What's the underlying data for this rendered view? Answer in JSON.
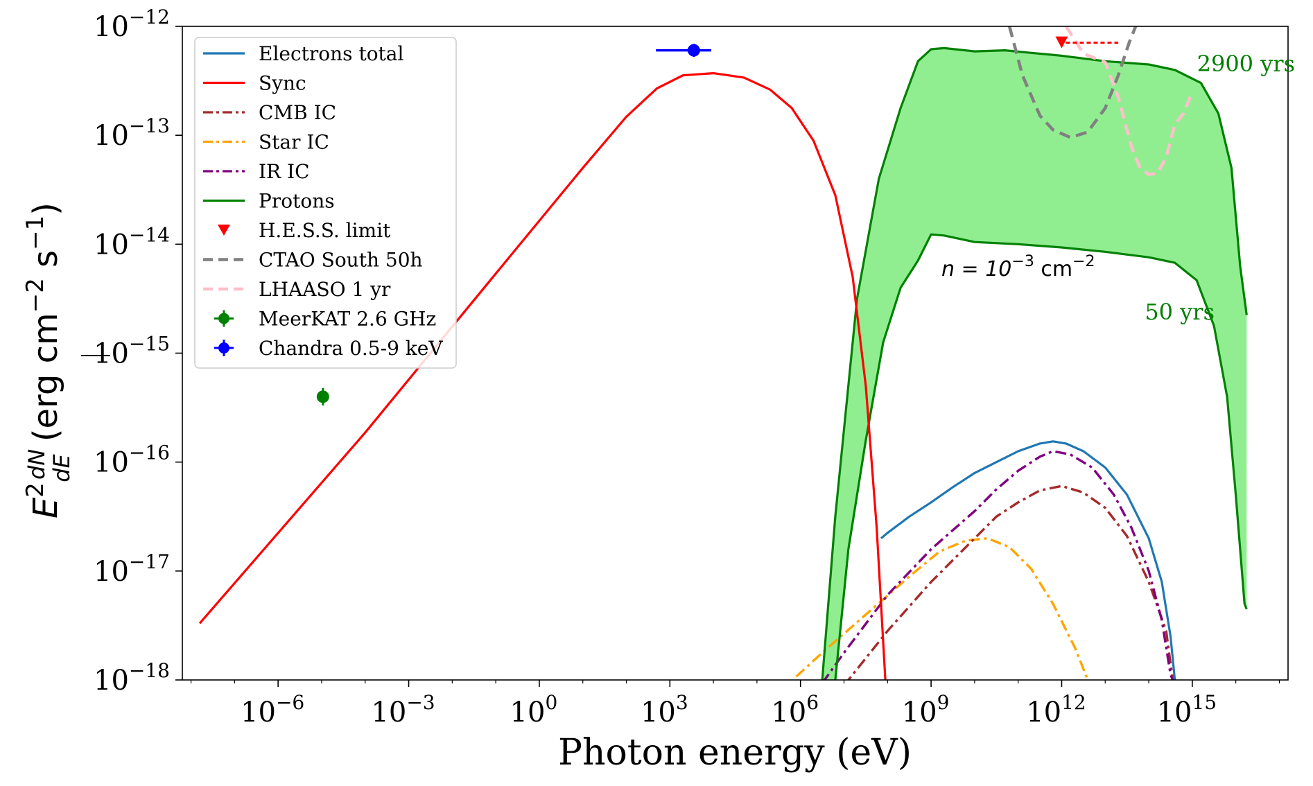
{
  "chart_data": {
    "type": "line",
    "x_scale": "log",
    "y_scale": "log",
    "xlabel": "Photon energy (eV)",
    "ylabel": "E^2 dN/dE (erg cm^-2 s^-1)",
    "ylabel_parts": {
      "E": "E",
      "sup2": "2",
      "num": "dN",
      "den": "dE",
      "unit": "(erg cm",
      "exp1": "−2",
      "s": " s",
      "exp2": "−1",
      "close": ")"
    },
    "xlim_log10": [
      -8.2,
      17.2
    ],
    "ylim_log10": [
      -18,
      -12
    ],
    "x_ticks": [
      {
        "base": "10",
        "exp": "−6",
        "log": -6
      },
      {
        "base": "10",
        "exp": "−3",
        "log": -3
      },
      {
        "base": "10",
        "exp": "0",
        "log": 0
      },
      {
        "base": "10",
        "exp": "3",
        "log": 3
      },
      {
        "base": "10",
        "exp": "6",
        "log": 6
      },
      {
        "base": "10",
        "exp": "9",
        "log": 9
      },
      {
        "base": "10",
        "exp": "12",
        "log": 12
      },
      {
        "base": "10",
        "exp": "15",
        "log": 15
      }
    ],
    "y_ticks": [
      {
        "base": "10",
        "exp": "−12",
        "log": -12
      },
      {
        "base": "10",
        "exp": "−13",
        "log": -13
      },
      {
        "base": "10",
        "exp": "−14",
        "log": -14
      },
      {
        "base": "10",
        "exp": "−15",
        "log": -15
      },
      {
        "base": "10",
        "exp": "−16",
        "log": -16
      },
      {
        "base": "10",
        "exp": "−17",
        "log": -17
      },
      {
        "base": "10",
        "exp": "−18",
        "log": -18
      }
    ],
    "legend_position": "top-left",
    "legend": [
      {
        "label": "Electrons total",
        "color": "#1f77b4",
        "style": "solid"
      },
      {
        "label": "Sync",
        "color": "#ff0000",
        "style": "solid"
      },
      {
        "label": "CMB IC",
        "color": "#a52a2a",
        "style": "dashdot"
      },
      {
        "label": "Star IC",
        "color": "#ffa500",
        "style": "dashdot"
      },
      {
        "label": "IR IC",
        "color": "#800080",
        "style": "dashdot"
      },
      {
        "label": "Protons",
        "color": "#008000",
        "style": "solid"
      },
      {
        "label": "H.E.S.S. limit",
        "color": "#ff0000",
        "style": "triangle"
      },
      {
        "label": "CTAO South 50h",
        "color": "#808080",
        "style": "dashed"
      },
      {
        "label": "LHAASO 1 yr",
        "color": "#ffc0cb",
        "style": "dashed"
      },
      {
        "label": "MeerKAT 2.6 GHz",
        "color": "#008000",
        "style": "errorpoint"
      },
      {
        "label": "Chandra 0.5-9 keV",
        "color": "#0000ff",
        "style": "errorpoint"
      }
    ],
    "annotations": {
      "age_high": "2900 yrs",
      "age_low": "50 yrs",
      "density": {
        "prefix": "n = 10",
        "exp": "−3",
        "suffix": " cm",
        "exp2": "−2"
      }
    },
    "series": {
      "sync": {
        "name": "Sync",
        "color": "#ff0000",
        "points": [
          [
            -7.8,
            -17.48
          ],
          [
            -4,
            -15.73
          ],
          [
            -1,
            -14.27
          ],
          [
            1,
            -13.3
          ],
          [
            2,
            -12.83
          ],
          [
            2.7,
            -12.57
          ],
          [
            3.3,
            -12.45
          ],
          [
            4,
            -12.43
          ],
          [
            4.7,
            -12.47
          ],
          [
            5.3,
            -12.58
          ],
          [
            5.8,
            -12.75
          ],
          [
            6.3,
            -13.05
          ],
          [
            6.8,
            -13.55
          ],
          [
            7.2,
            -14.3
          ],
          [
            7.5,
            -15.3
          ],
          [
            7.75,
            -16.6
          ],
          [
            7.95,
            -18
          ]
        ]
      },
      "electrons_total": {
        "name": "Electrons total",
        "color": "#1f77b4",
        "points": [
          [
            7.85,
            -16.7
          ],
          [
            8,
            -16.65
          ],
          [
            8.5,
            -16.5
          ],
          [
            9,
            -16.37
          ],
          [
            9.5,
            -16.23
          ],
          [
            10,
            -16.1
          ],
          [
            10.5,
            -16
          ],
          [
            11,
            -15.9
          ],
          [
            11.5,
            -15.83
          ],
          [
            11.8,
            -15.81
          ],
          [
            12.1,
            -15.83
          ],
          [
            12.5,
            -15.9
          ],
          [
            13,
            -16.05
          ],
          [
            13.5,
            -16.3
          ],
          [
            14,
            -16.7
          ],
          [
            14.3,
            -17.1
          ],
          [
            14.5,
            -17.6
          ],
          [
            14.6,
            -18
          ]
        ]
      },
      "ir_ic": {
        "name": "IR IC",
        "color": "#800080",
        "points": [
          [
            6.5,
            -18.03
          ],
          [
            7,
            -17.75
          ],
          [
            8,
            -17.22
          ],
          [
            9,
            -16.8
          ],
          [
            10,
            -16.45
          ],
          [
            10.5,
            -16.25
          ],
          [
            11,
            -16.08
          ],
          [
            11.5,
            -15.95
          ],
          [
            11.8,
            -15.9
          ],
          [
            12.2,
            -15.93
          ],
          [
            12.7,
            -16.05
          ],
          [
            13.2,
            -16.3
          ],
          [
            13.6,
            -16.6
          ],
          [
            14,
            -17
          ],
          [
            14.3,
            -17.45
          ],
          [
            14.5,
            -17.95
          ],
          [
            14.55,
            -18
          ]
        ]
      },
      "cmb_ic": {
        "name": "CMB IC",
        "color": "#a52a2a",
        "points": [
          [
            7,
            -18.05
          ],
          [
            8,
            -17.55
          ],
          [
            9,
            -17.1
          ],
          [
            10,
            -16.7
          ],
          [
            10.5,
            -16.5
          ],
          [
            11,
            -16.37
          ],
          [
            11.5,
            -16.26
          ],
          [
            12,
            -16.22
          ],
          [
            12.5,
            -16.28
          ],
          [
            13,
            -16.42
          ],
          [
            13.5,
            -16.68
          ],
          [
            14,
            -17.1
          ],
          [
            14.4,
            -17.55
          ],
          [
            14.55,
            -18
          ]
        ]
      },
      "star_ic": {
        "name": "Star IC",
        "color": "#ffa500",
        "points": [
          [
            5.9,
            -17.97
          ],
          [
            6.5,
            -17.75
          ],
          [
            7.5,
            -17.4
          ],
          [
            8.5,
            -17.05
          ],
          [
            9.2,
            -16.82
          ],
          [
            9.8,
            -16.72
          ],
          [
            10.3,
            -16.7
          ],
          [
            10.8,
            -16.78
          ],
          [
            11.3,
            -16.98
          ],
          [
            11.8,
            -17.3
          ],
          [
            12.3,
            -17.7
          ],
          [
            12.6,
            -18
          ]
        ]
      },
      "protons_upper": {
        "name": "Protons",
        "color": "#008000",
        "points": [
          [
            6.5,
            -18
          ],
          [
            6.8,
            -16.5
          ],
          [
            7.3,
            -14.5
          ],
          [
            7.8,
            -13.4
          ],
          [
            8.3,
            -12.75
          ],
          [
            8.7,
            -12.32
          ],
          [
            9,
            -12.21
          ],
          [
            9.3,
            -12.2
          ],
          [
            10,
            -12.23
          ],
          [
            10.7,
            -12.22
          ],
          [
            11.2,
            -12.24
          ],
          [
            12,
            -12.27
          ],
          [
            13,
            -12.32
          ],
          [
            14,
            -12.35
          ],
          [
            14.6,
            -12.4
          ],
          [
            15.2,
            -12.52
          ],
          [
            15.6,
            -12.8
          ],
          [
            15.9,
            -13.3
          ],
          [
            16.1,
            -14.2
          ],
          [
            16.25,
            -14.65
          ]
        ]
      },
      "protons_lower": {
        "name": "Protons",
        "color": "#008000",
        "points": [
          [
            6.8,
            -18
          ],
          [
            7.1,
            -16.8
          ],
          [
            7.5,
            -15.8
          ],
          [
            7.9,
            -14.9
          ],
          [
            8.3,
            -14.4
          ],
          [
            8.7,
            -14.15
          ],
          [
            9,
            -13.91
          ],
          [
            9.3,
            -13.92
          ],
          [
            10,
            -13.98
          ],
          [
            11,
            -14
          ],
          [
            12,
            -14.03
          ],
          [
            13,
            -14.07
          ],
          [
            14,
            -14.12
          ],
          [
            14.6,
            -14.17
          ],
          [
            15.1,
            -14.33
          ],
          [
            15.5,
            -14.75
          ],
          [
            15.8,
            -15.4
          ],
          [
            16,
            -16.3
          ],
          [
            16.2,
            -17.3
          ],
          [
            16.25,
            -17.35
          ]
        ]
      },
      "ctao": {
        "name": "CTAO South 50h",
        "color": "#808080",
        "points": [
          [
            10.8,
            -12
          ],
          [
            11.1,
            -12.45
          ],
          [
            11.5,
            -12.82
          ],
          [
            11.8,
            -12.95
          ],
          [
            12.2,
            -13.02
          ],
          [
            12.6,
            -12.97
          ],
          [
            13,
            -12.75
          ],
          [
            13.3,
            -12.45
          ],
          [
            13.55,
            -12.15
          ],
          [
            13.8,
            -11.9
          ]
        ]
      },
      "lhaaso": {
        "name": "LHAASO 1 yr",
        "color": "#ffc0cb",
        "points": [
          [
            12.1,
            -12
          ],
          [
            12.5,
            -12.25
          ],
          [
            13,
            -12.33
          ],
          [
            13.3,
            -12.65
          ],
          [
            13.6,
            -13.1
          ],
          [
            13.8,
            -13.3
          ],
          [
            14,
            -13.36
          ],
          [
            14.2,
            -13.35
          ],
          [
            14.4,
            -13.2
          ],
          [
            14.6,
            -12.9
          ],
          [
            14.8,
            -12.8
          ],
          [
            15,
            -12.6
          ]
        ]
      }
    },
    "points": {
      "meerkat": {
        "name": "MeerKAT 2.6 GHz",
        "color": "#008000",
        "x": -4.97,
        "y": -15.4,
        "yerr_log": [
          -15.48,
          -15.32
        ]
      },
      "chandra": {
        "name": "Chandra 0.5-9 keV",
        "color": "#0000ff",
        "x": 3.55,
        "y": -12.22,
        "xerr_log": [
          2.68,
          3.95
        ],
        "yerr_log": [
          -12.28,
          -12.16
        ]
      },
      "hess": {
        "name": "H.E.S.S. limit",
        "color": "#ff0000",
        "x": 12,
        "y": -12.15,
        "arrow_to": 13.3
      }
    }
  }
}
